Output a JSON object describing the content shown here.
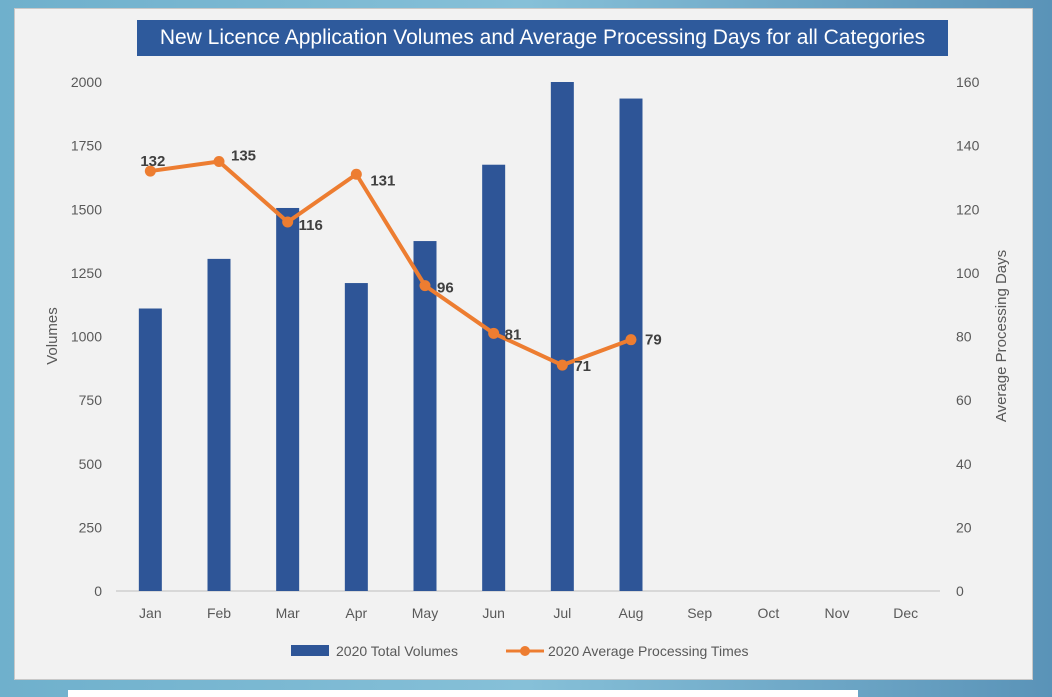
{
  "colors": {
    "bar": "#2e5597",
    "line": "#ed7d31",
    "title_bg": "#2e5a9c"
  },
  "chart_data": {
    "type": "bar+line",
    "title": "New Licence Application Volumes and Average Processing Days for all Categories",
    "categories": [
      "Jan",
      "Feb",
      "Mar",
      "Apr",
      "May",
      "Jun",
      "Jul",
      "Aug",
      "Sep",
      "Oct",
      "Nov",
      "Dec"
    ],
    "series": [
      {
        "name": "2020 Total Volumes",
        "type": "bar",
        "axis": "left",
        "values": [
          1110,
          1305,
          1505,
          1210,
          1375,
          1675,
          2000,
          1935,
          null,
          null,
          null,
          null
        ]
      },
      {
        "name": "2020 Average Processing Times",
        "type": "line",
        "axis": "right",
        "values": [
          132,
          135,
          116,
          131,
          96,
          81,
          71,
          79,
          null,
          null,
          null,
          null
        ]
      }
    ],
    "ylabel": "Volumes",
    "y2label": "Average Processing Days",
    "ylim": [
      0,
      2000
    ],
    "yticks": [
      "0",
      "250",
      "500",
      "750",
      "1000",
      "1250",
      "1500",
      "1750",
      "2000"
    ],
    "y2lim": [
      0,
      160
    ],
    "y2ticks": [
      "0",
      "20",
      "40",
      "60",
      "80",
      "100",
      "120",
      "140",
      "160"
    ],
    "data_labels": [
      "132",
      "135",
      "116",
      "131",
      "96",
      "81",
      "71",
      "79"
    ],
    "legend": {
      "position": "bottom",
      "entries": [
        "2020 Total Volumes",
        "2020 Average Processing Times"
      ]
    },
    "grid": false
  }
}
